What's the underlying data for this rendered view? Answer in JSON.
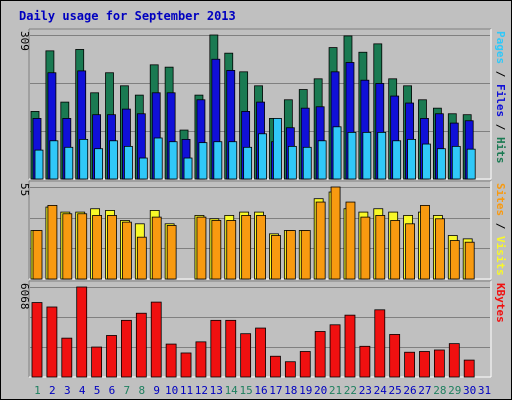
{
  "title": "Daily usage for September 2013",
  "colors": {
    "background": "#c0c0c0",
    "panel": "#c0c0c0",
    "hits": "#1a7a52",
    "files": "#1010d8",
    "pages": "#30c8f8",
    "visits": "#f8f828",
    "sites": "#f89a10",
    "kbytes": "#f01010",
    "title": "#0000c0",
    "weekend_label": "#208060",
    "weekday_label": "#0000c0"
  },
  "chart_data": [
    {
      "type": "bar",
      "panel": "hits-files-pages",
      "ymax_label": "309",
      "ylim": [
        0,
        309
      ],
      "legend": [
        {
          "label": "Pages",
          "color": "#30c8f8"
        },
        {
          "label": " / ",
          "color": "#000000"
        },
        {
          "label": "Files",
          "color": "#1010d8"
        },
        {
          "label": " / ",
          "color": "#000000"
        },
        {
          "label": "Hits",
          "color": "#1a7a52"
        }
      ],
      "categories": [
        "1",
        "2",
        "3",
        "4",
        "5",
        "6",
        "7",
        "8",
        "9",
        "10",
        "11",
        "12",
        "13",
        "14",
        "15",
        "16",
        "17",
        "18",
        "19",
        "20",
        "21",
        "22",
        "23",
        "24",
        "25",
        "26",
        "27",
        "28",
        "29",
        "30",
        "31"
      ],
      "series": [
        {
          "name": "Hits",
          "values": [
            145,
            275,
            165,
            278,
            185,
            228,
            200,
            180,
            245,
            240,
            105,
            180,
            309,
            270,
            230,
            200,
            130,
            170,
            192,
            215,
            282,
            307,
            272,
            290,
            215,
            200,
            170,
            152,
            140,
            138,
            0
          ]
        },
        {
          "name": "Files",
          "values": [
            130,
            228,
            130,
            232,
            138,
            138,
            150,
            140,
            185,
            185,
            85,
            170,
            257,
            233,
            145,
            165,
            80,
            110,
            152,
            155,
            230,
            250,
            212,
            205,
            178,
            163,
            130,
            140,
            120,
            125,
            0
          ]
        },
        {
          "name": "Pages",
          "values": [
            62,
            82,
            68,
            85,
            65,
            82,
            70,
            45,
            88,
            80,
            45,
            78,
            80,
            80,
            68,
            97,
            130,
            70,
            68,
            82,
            112,
            100,
            100,
            100,
            82,
            85,
            75,
            65,
            70,
            64,
            0
          ]
        }
      ]
    },
    {
      "type": "bar",
      "panel": "visits-sites",
      "ymax_label": "55",
      "ylim": [
        0,
        55
      ],
      "legend": [
        {
          "label": "Sites",
          "color": "#f89a10"
        },
        {
          "label": " / ",
          "color": "#000000"
        },
        {
          "label": "Visits",
          "color": "#f8f828"
        }
      ],
      "categories": [
        "1",
        "2",
        "3",
        "4",
        "5",
        "6",
        "7",
        "8",
        "9",
        "10",
        "11",
        "12",
        "13",
        "14",
        "15",
        "16",
        "17",
        "18",
        "19",
        "20",
        "21",
        "22",
        "23",
        "24",
        "25",
        "26",
        "27",
        "28",
        "29",
        "30",
        "31"
      ],
      "series": [
        {
          "name": "Visits",
          "values": [
            29,
            43,
            40,
            40,
            42,
            41,
            35,
            33,
            41,
            33,
            0,
            38,
            36,
            38,
            40,
            40,
            27,
            29,
            29,
            48,
            52,
            42,
            40,
            42,
            40,
            38,
            40,
            38,
            26,
            24,
            0
          ]
        },
        {
          "name": "Sites",
          "values": [
            29,
            44,
            39,
            39,
            38,
            38,
            34,
            25,
            37,
            32,
            0,
            37,
            35,
            35,
            38,
            38,
            26,
            29,
            29,
            46,
            55,
            46,
            37,
            38,
            35,
            33,
            44,
            36,
            23,
            22,
            0
          ]
        }
      ]
    },
    {
      "type": "bar",
      "panel": "kbytes",
      "ymax_label": "6068",
      "ylim": [
        0,
        6068
      ],
      "legend": [
        {
          "label": "KBytes",
          "color": "#f01010"
        }
      ],
      "categories": [
        "1",
        "2",
        "3",
        "4",
        "5",
        "6",
        "7",
        "8",
        "9",
        "10",
        "11",
        "12",
        "13",
        "14",
        "15",
        "16",
        "17",
        "18",
        "19",
        "20",
        "21",
        "22",
        "23",
        "24",
        "25",
        "26",
        "27",
        "28",
        "29",
        "30",
        "31"
      ],
      "series": [
        {
          "name": "KBytes",
          "values": [
            5020,
            4720,
            2620,
            6068,
            2020,
            2800,
            3820,
            4300,
            5050,
            2220,
            1620,
            2370,
            3820,
            3820,
            2920,
            3300,
            1400,
            1030,
            1720,
            3070,
            3520,
            4170,
            2070,
            4530,
            2870,
            1670,
            1720,
            1820,
            2250,
            1140,
            0
          ]
        }
      ]
    }
  ],
  "x_axis": {
    "labels": [
      "1",
      "2",
      "3",
      "4",
      "5",
      "6",
      "7",
      "8",
      "9",
      "10",
      "11",
      "12",
      "13",
      "14",
      "15",
      "16",
      "17",
      "18",
      "19",
      "20",
      "21",
      "22",
      "23",
      "24",
      "25",
      "26",
      "27",
      "28",
      "29",
      "30",
      "31"
    ],
    "weekend_days": [
      "1",
      "7",
      "8",
      "14",
      "15",
      "21",
      "22",
      "28",
      "29"
    ]
  }
}
